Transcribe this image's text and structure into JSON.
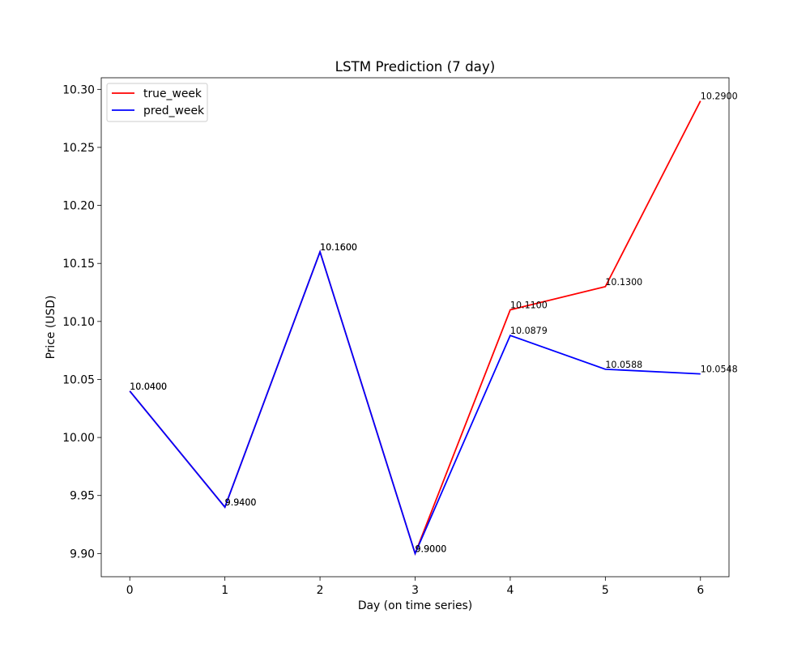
{
  "chart_data": {
    "type": "line",
    "title": "LSTM Prediction (7 day)",
    "xlabel": "Day (on time series)",
    "ylabel": "Price (USD)",
    "x": [
      0,
      1,
      2,
      3,
      4,
      5,
      6
    ],
    "xticks": [
      "0",
      "1",
      "2",
      "3",
      "4",
      "5",
      "6"
    ],
    "yticks": [
      "9.90",
      "9.95",
      "10.00",
      "10.05",
      "10.10",
      "10.15",
      "10.20",
      "10.25",
      "10.30"
    ],
    "xlim": [
      -0.3,
      6.3
    ],
    "ylim": [
      9.88,
      10.31
    ],
    "grid": false,
    "legend_position": "upper-left",
    "series": [
      {
        "name": "true_week",
        "color": "#ff0000",
        "values": [
          10.04,
          9.94,
          10.16,
          9.9,
          10.11,
          10.13,
          10.29
        ],
        "labels": [
          "10.0400",
          "9.9400",
          "10.1600",
          "9.9000",
          "10.1100",
          "10.1300",
          "10.2900"
        ]
      },
      {
        "name": "pred_week",
        "color": "#0000ff",
        "values": [
          10.04,
          9.94,
          10.16,
          9.9,
          10.0879,
          10.0588,
          10.0548
        ],
        "labels": [
          "10.0400",
          "9.9400",
          "10.1600",
          "9.9000",
          "10.0879",
          "10.0588",
          "10.0548"
        ]
      }
    ]
  }
}
